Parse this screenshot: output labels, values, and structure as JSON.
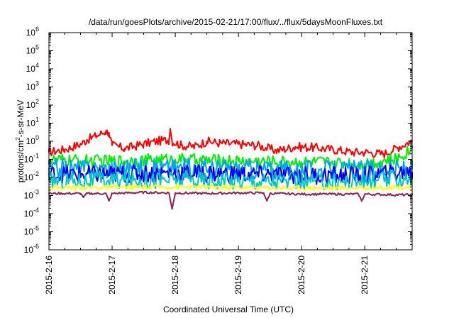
{
  "chart_data": {
    "type": "line",
    "title": "/data/run/goesPlots/archive/2015-02-21/17:00/flux/../flux/5daysMoonFluxes.txt",
    "xlabel": "Coordinated Universal Time (UTC)",
    "ylabel": {
      "base": "protons/cm",
      "sup": "2",
      "rest": "-s-sr-MeV"
    },
    "yscale": "log",
    "ylim_exp": [
      -6,
      6
    ],
    "ytick_base": "10",
    "ytick_exponents": [
      "-6",
      "-5",
      "-4",
      "-3",
      "-2",
      "-1",
      "0",
      "1",
      "2",
      "3",
      "4",
      "5",
      "6"
    ],
    "xlim_days": [
      0,
      5.75
    ],
    "xtick_labels": [
      "2015-2-16",
      "2015-2-17",
      "2015-2-18",
      "2015-2-19",
      "2015-2-20",
      "2015-2-21"
    ],
    "grid": false,
    "legend": "none",
    "series": [
      {
        "color": "#ff0000",
        "x": [
          0,
          0.25,
          0.5,
          0.6,
          0.75,
          0.9,
          0.95,
          1.0,
          1.2,
          1.5,
          1.7,
          1.9,
          1.92,
          1.95,
          2.1,
          2.3,
          2.5,
          2.7,
          3.0,
          3.3,
          3.6,
          3.9,
          4.2,
          4.5,
          4.8,
          5.0,
          5.3,
          5.55,
          5.75
        ],
        "values": [
          0.25,
          0.35,
          0.7,
          1.2,
          2.0,
          3.5,
          3.0,
          0.6,
          0.4,
          0.7,
          1.0,
          1.2,
          5.0,
          1.0,
          0.6,
          0.5,
          1.0,
          0.8,
          0.7,
          0.6,
          0.3,
          0.5,
          0.45,
          0.35,
          0.25,
          0.25,
          0.2,
          0.5,
          1.1
        ]
      },
      {
        "color": "#00ee00",
        "x": [
          0,
          1.0,
          2.0,
          3.0,
          4.0,
          5.0,
          5.5,
          5.75
        ],
        "values": [
          0.09,
          0.08,
          0.1,
          0.08,
          0.07,
          0.06,
          0.1,
          0.4
        ]
      },
      {
        "color": "#00a0ff",
        "x": [
          0,
          1.0,
          2.0,
          3.0,
          4.0,
          5.0,
          5.75
        ],
        "values": [
          0.03,
          0.03,
          0.035,
          0.03,
          0.025,
          0.025,
          0.03
        ]
      },
      {
        "color": "#0000ee",
        "x": [
          0,
          1.0,
          2.0,
          3.0,
          4.0,
          5.0,
          5.75
        ],
        "values": [
          0.015,
          0.015,
          0.018,
          0.015,
          0.013,
          0.013,
          0.02
        ]
      },
      {
        "color": "#00c8c8",
        "x": [
          0,
          1.0,
          2.0,
          3.0,
          4.0,
          5.0,
          5.75
        ],
        "values": [
          0.007,
          0.007,
          0.008,
          0.007,
          0.006,
          0.006,
          0.01
        ]
      },
      {
        "color": "#ffff00",
        "x": [
          0,
          1.0,
          2.0,
          3.0,
          4.0,
          5.0,
          5.75
        ],
        "values": [
          0.0028,
          0.0028,
          0.003,
          0.0028,
          0.0027,
          0.0027,
          0.003
        ]
      },
      {
        "color": "#8b2252",
        "x": [
          0,
          0.5,
          0.55,
          0.6,
          0.9,
          0.95,
          1.0,
          1.5,
          1.9,
          1.95,
          2.0,
          2.5,
          3.0,
          3.4,
          3.45,
          3.5,
          4.0,
          4.5,
          4.9,
          4.95,
          5.0,
          5.5,
          5.75
        ],
        "values": [
          0.0013,
          0.0013,
          0.0008,
          0.0013,
          0.0013,
          0.0005,
          0.0013,
          0.0015,
          0.0014,
          0.00018,
          0.0014,
          0.0013,
          0.0014,
          0.0014,
          0.0005,
          0.0013,
          0.0012,
          0.0012,
          0.0012,
          0.0005,
          0.0012,
          0.0011,
          0.0011
        ]
      }
    ]
  }
}
